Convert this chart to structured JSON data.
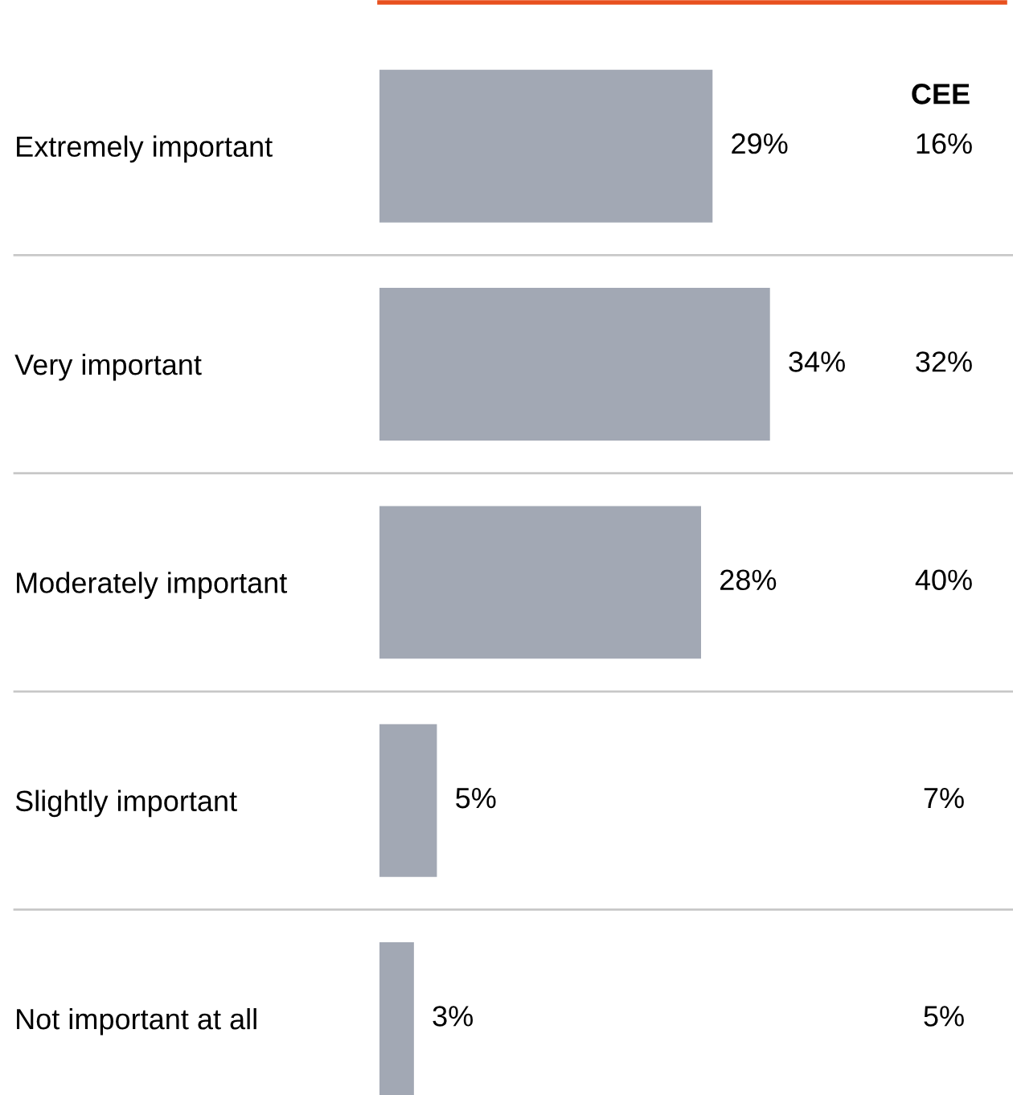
{
  "chart_data": {
    "type": "bar",
    "orientation": "horizontal",
    "categories": [
      "Extremely important",
      "Very important",
      "Moderately important",
      "Slightly important",
      "Not important at all"
    ],
    "values": [
      29,
      34,
      28,
      5,
      3
    ],
    "value_labels": [
      "29%",
      "34%",
      "28%",
      "5%",
      "3%"
    ],
    "color": "#a2a8b4",
    "tick_labels": "y",
    "grid": false,
    "legend": false,
    "annotations": [
      "CEE",
      "16%",
      "32%",
      "40%",
      "7%",
      "5%"
    ]
  }
}
